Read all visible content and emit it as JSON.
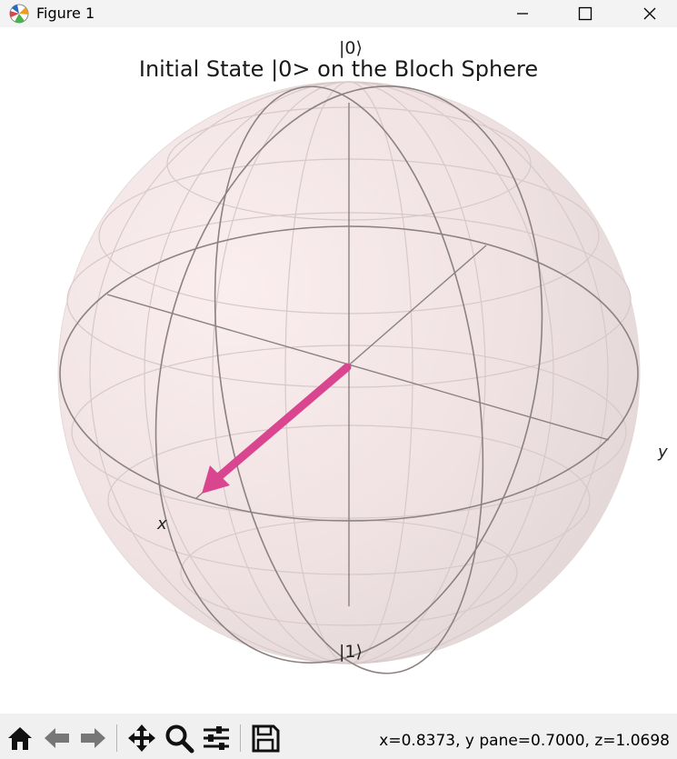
{
  "window": {
    "title": "Figure 1"
  },
  "figure": {
    "title": "Initial State |0> on the Bloch Sphere",
    "labels": {
      "north": "|0⟩",
      "south": "|1⟩",
      "x": "x",
      "y": "y"
    },
    "vector_color": "#d9468f"
  },
  "toolbar": {
    "icons": [
      "home-icon",
      "back-arrow-icon",
      "forward-arrow-icon",
      "pan-icon",
      "zoom-icon",
      "configure-subplots-icon",
      "save-icon"
    ],
    "status": "x=0.8373, y pane=0.7000, z=1.0698"
  }
}
